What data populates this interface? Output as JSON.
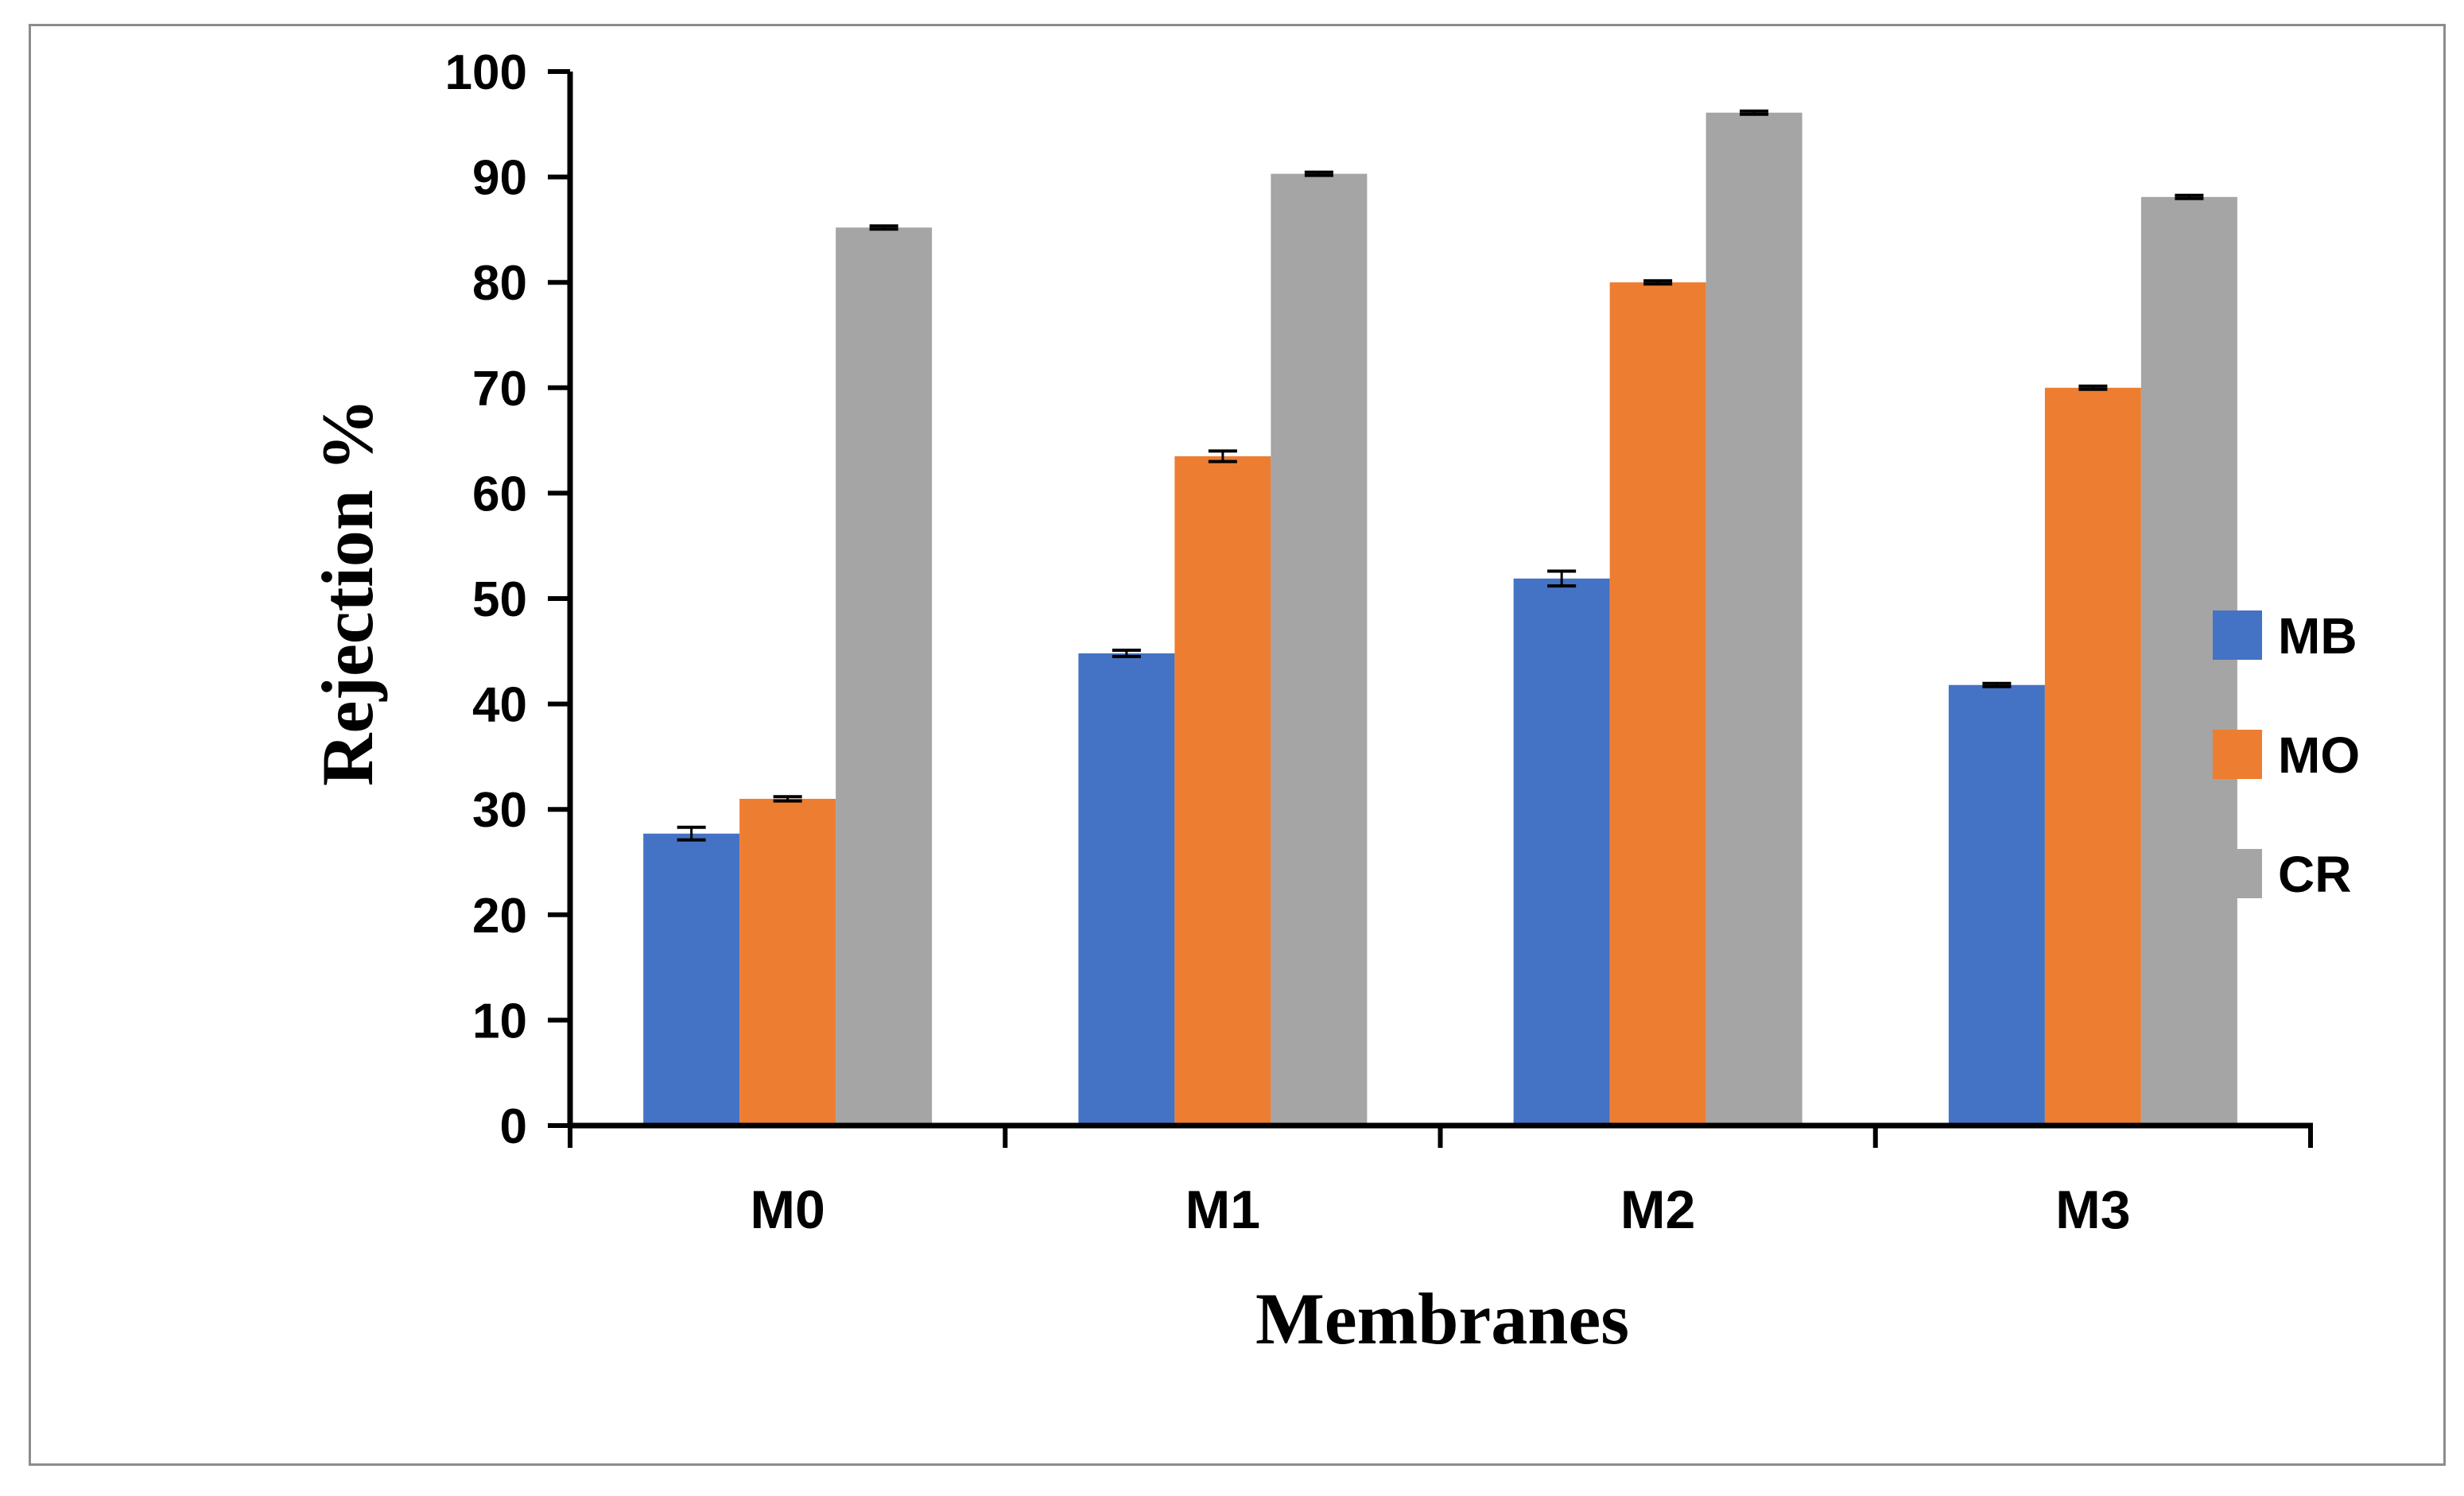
{
  "chart_data": {
    "type": "bar",
    "title": "",
    "xlabel": "Membranes",
    "ylabel": "Rejection %",
    "categories": [
      "M0",
      "M1",
      "M2",
      "M3"
    ],
    "ylim": [
      0,
      100
    ],
    "yticks": [
      0,
      10,
      20,
      30,
      40,
      50,
      60,
      70,
      80,
      90,
      100
    ],
    "grid": false,
    "legend_position": "right",
    "series": [
      {
        "name": "MB",
        "color": "#4472c4",
        "values": [
          27.7,
          44.8,
          51.9,
          41.8
        ],
        "errors": [
          0.6,
          0.3,
          0.7,
          0.15
        ]
      },
      {
        "name": "MO",
        "color": "#ed7d31",
        "values": [
          31.0,
          63.5,
          80.0,
          70.0
        ],
        "errors": [
          0.2,
          0.5,
          0.15,
          0.15
        ]
      },
      {
        "name": "CR",
        "color": "#a5a5a5",
        "values": [
          85.2,
          90.3,
          96.1,
          88.1
        ],
        "errors": [
          0.15,
          0.15,
          0.15,
          0.15
        ]
      }
    ]
  }
}
